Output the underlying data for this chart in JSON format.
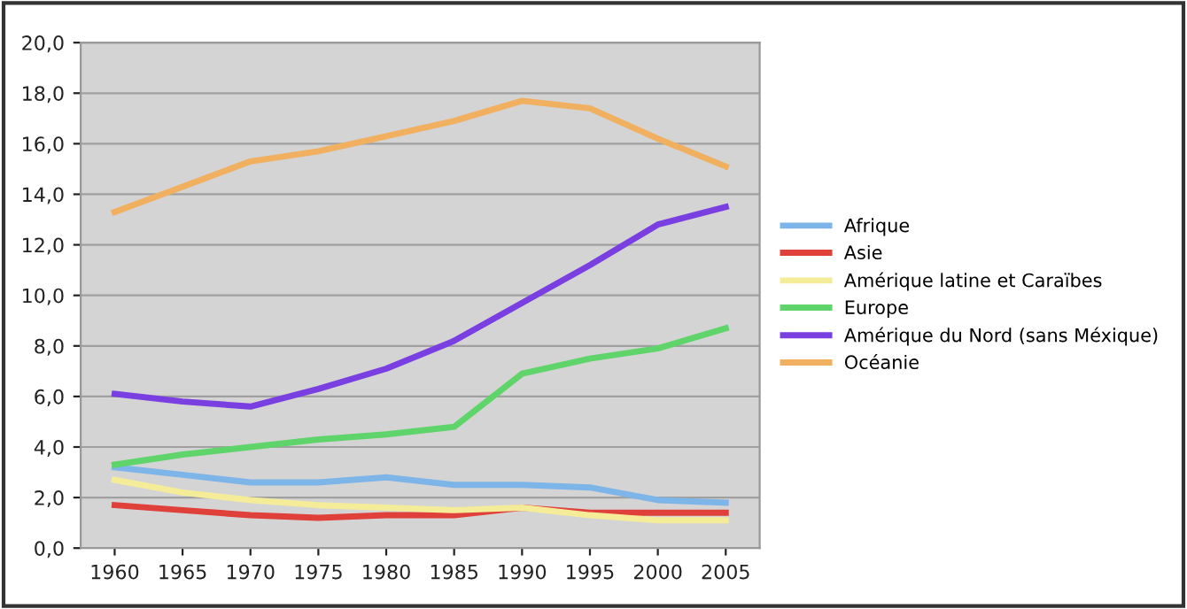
{
  "chart_data": {
    "type": "line",
    "categories": [
      "1960",
      "1965",
      "1970",
      "1975",
      "1980",
      "1985",
      "1990",
      "1995",
      "2000",
      "2005"
    ],
    "series": [
      {
        "name": "Afrique",
        "color": "#7eb5e8",
        "values": [
          3.2,
          2.9,
          2.6,
          2.6,
          2.8,
          2.5,
          2.5,
          2.4,
          1.9,
          1.8
        ]
      },
      {
        "name": "Asie",
        "color": "#e0403a",
        "values": [
          1.7,
          1.5,
          1.3,
          1.2,
          1.3,
          1.3,
          1.6,
          1.4,
          1.4,
          1.4
        ]
      },
      {
        "name": "Amérique latine et Caraïbes",
        "color": "#f5ec9a",
        "values": [
          2.7,
          2.2,
          1.9,
          1.7,
          1.6,
          1.5,
          1.6,
          1.3,
          1.1,
          1.1
        ]
      },
      {
        "name": "Europe",
        "color": "#5ed46a",
        "values": [
          3.3,
          3.7,
          4.0,
          4.3,
          4.5,
          4.8,
          6.9,
          7.5,
          7.9,
          8.7
        ]
      },
      {
        "name": "Amérique du Nord (sans Méxique)",
        "color": "#7a3fe0",
        "values": [
          6.1,
          5.8,
          5.6,
          6.3,
          7.1,
          8.2,
          9.7,
          11.2,
          12.8,
          13.5
        ]
      },
      {
        "name": "Océanie",
        "color": "#f0b060",
        "values": [
          13.3,
          14.3,
          15.3,
          15.7,
          16.3,
          16.9,
          17.7,
          17.4,
          16.2,
          15.1
        ]
      }
    ],
    "ylim": [
      0,
      20
    ],
    "yticks": [
      {
        "value": 0,
        "label": "0,0"
      },
      {
        "value": 2,
        "label": "2,0"
      },
      {
        "value": 4,
        "label": "4,0"
      },
      {
        "value": 6,
        "label": "6,0"
      },
      {
        "value": 8,
        "label": "8,0"
      },
      {
        "value": 10,
        "label": "10,0"
      },
      {
        "value": 12,
        "label": "12,0"
      },
      {
        "value": 14,
        "label": "14,0"
      },
      {
        "value": 16,
        "label": "16,0"
      },
      {
        "value": 18,
        "label": "18,0"
      },
      {
        "value": 20,
        "label": "20,0"
      }
    ],
    "grid": "y",
    "legend": "right",
    "marker": "none",
    "line_style": "solid"
  }
}
